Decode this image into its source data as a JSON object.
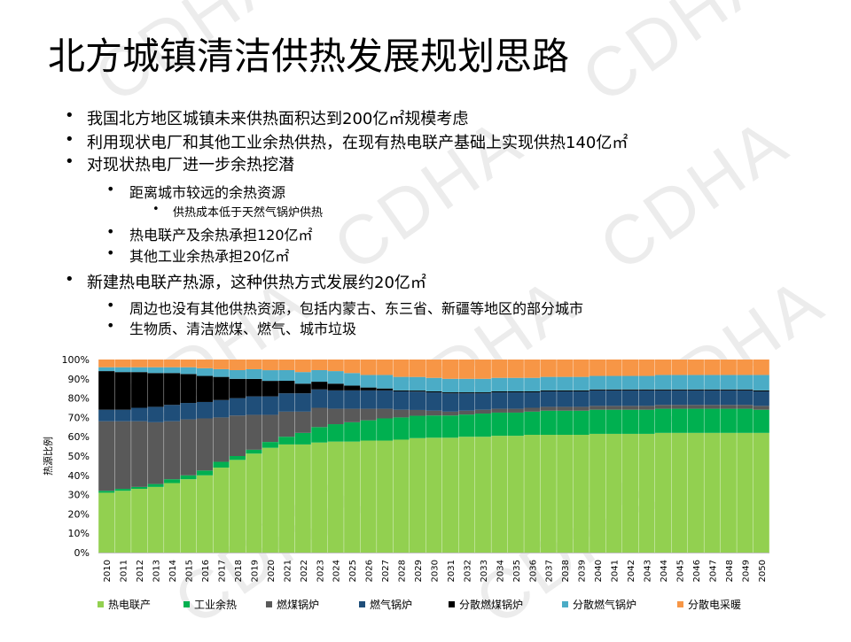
{
  "watermark": "CDHA",
  "title": "北方城镇清洁供热发展规划思路",
  "bullets": [
    {
      "level": 1,
      "text": "我国北方地区城镇未来供热面积达到200亿㎡规模考虑"
    },
    {
      "level": 1,
      "text": "利用现状电厂和其他工业余热供热，在现有热电联产基础上实现供热140亿㎡"
    },
    {
      "level": 1,
      "text": "对现状热电厂进一步余热挖潜"
    },
    {
      "level": 2,
      "text": "距离城市较远的余热资源"
    },
    {
      "level": 3,
      "text": "供热成本低于天然气锅炉供热"
    },
    {
      "level": 2,
      "text": "热电联产及余热承担120亿㎡"
    },
    {
      "level": 2,
      "text": "其他工业余热承担20亿㎡"
    },
    {
      "level": 1,
      "text": "新建热电联产热源，这种供热方式发展约20亿㎡"
    },
    {
      "level": 2,
      "text": "周边也没有其他供热资源，包括内蒙古、东三省、新疆等地区的部分城市"
    },
    {
      "level": 2,
      "text": "生物质、清洁燃煤、燃气、城市垃圾"
    }
  ],
  "chart_data": {
    "type": "stacked-bar-100",
    "title": "",
    "ylabel": "热源比例",
    "xlabel": "",
    "ylim": [
      0,
      100
    ],
    "yticks": [
      "0%",
      "10%",
      "20%",
      "30%",
      "40%",
      "50%",
      "60%",
      "70%",
      "80%",
      "90%",
      "100%"
    ],
    "categories": [
      "2010",
      "2011",
      "2012",
      "2013",
      "2014",
      "2015",
      "2016",
      "2017",
      "2018",
      "2019",
      "2020",
      "2021",
      "2022",
      "2023",
      "2024",
      "2025",
      "2026",
      "2027",
      "2028",
      "2029",
      "2030",
      "2031",
      "2032",
      "2033",
      "2034",
      "2035",
      "2036",
      "2037",
      "2038",
      "2039",
      "2040",
      "2041",
      "2042",
      "2043",
      "2044",
      "2045",
      "2046",
      "2047",
      "2048",
      "2049",
      "2050"
    ],
    "series": [
      {
        "name": "热电联产",
        "color": "#92d050",
        "values": [
          31,
          32,
          33,
          34,
          36,
          38,
          40,
          44,
          48,
          51,
          54,
          56,
          56,
          57,
          57.5,
          57.5,
          58,
          58,
          58.5,
          59,
          59.5,
          59.5,
          60,
          60,
          60.5,
          60.5,
          61,
          61,
          61,
          61,
          61.5,
          61.5,
          61.5,
          61.5,
          62,
          62,
          62,
          62,
          62,
          62,
          62
        ]
      },
      {
        "name": "工业余热",
        "color": "#00b050",
        "values": [
          1,
          1,
          1,
          1.5,
          2,
          2,
          2.5,
          3,
          2,
          2,
          3,
          4,
          6,
          8,
          9,
          10,
          10.5,
          11.5,
          11.5,
          11.5,
          11.5,
          11.5,
          11.5,
          12,
          12,
          12,
          12,
          12.5,
          12.5,
          12.5,
          12.5,
          12.5,
          12.5,
          12.5,
          12.5,
          12.5,
          12.5,
          12.5,
          12.5,
          12.5,
          12
        ]
      },
      {
        "name": "燃煤锅炉",
        "color": "#595959",
        "values": [
          36,
          35,
          34,
          32,
          30,
          29,
          27,
          23,
          21,
          18,
          14,
          13,
          11,
          10,
          8,
          7,
          6,
          5,
          4,
          3,
          2.5,
          2,
          2,
          2,
          2,
          2,
          2,
          2,
          2,
          2,
          2,
          2,
          2,
          2,
          2,
          2,
          2,
          2,
          2,
          2,
          2
        ]
      },
      {
        "name": "燃气锅炉",
        "color": "#1f4e79",
        "values": [
          6,
          6,
          7,
          8,
          8.5,
          8.5,
          8.5,
          9,
          9,
          9.5,
          9.5,
          9.5,
          9.5,
          9.5,
          9.5,
          9.5,
          9.5,
          9.5,
          9.5,
          9.5,
          9.5,
          9.5,
          9,
          8.5,
          8.5,
          8.5,
          8,
          8,
          8,
          8,
          8,
          8,
          8,
          8,
          7.5,
          7.5,
          7.5,
          7.5,
          7.5,
          7.5,
          7.5
        ]
      },
      {
        "name": "分散燃煤锅炉",
        "color": "#000000",
        "values": [
          20,
          19.5,
          18.5,
          17.5,
          16.5,
          15,
          13.5,
          12,
          10,
          9,
          8,
          6.5,
          5,
          4,
          3.5,
          2.5,
          1.5,
          1,
          0.5,
          0.5,
          0.5,
          0.5,
          0.5,
          0.5,
          0.5,
          0.5,
          0.5,
          0.5,
          0.5,
          0.5,
          0.5,
          0.5,
          0.5,
          0.5,
          0.5,
          0.5,
          0.5,
          0.5,
          0.5,
          0.5,
          0.5
        ]
      },
      {
        "name": "分散燃气锅炉",
        "color": "#4bacc6",
        "values": [
          2,
          2.5,
          2.5,
          3,
          3,
          3.5,
          4,
          4,
          4.5,
          5,
          5.5,
          5.5,
          6,
          6,
          6.5,
          6.5,
          6.5,
          7,
          7,
          7,
          7,
          7,
          7,
          7,
          7,
          7,
          7,
          7,
          7,
          7,
          7,
          7,
          7,
          7,
          7.5,
          7.5,
          7.5,
          7.5,
          7.5,
          7.5,
          8
        ]
      },
      {
        "name": "分散电采暖",
        "color": "#f79646",
        "values": [
          4,
          4,
          4,
          4,
          4,
          4,
          4.5,
          5,
          5.5,
          5,
          5.5,
          5.5,
          6.5,
          5.5,
          6,
          7,
          8,
          8,
          9,
          9,
          9.5,
          10,
          10,
          10,
          9.5,
          9.5,
          9.5,
          9,
          9,
          9,
          8.5,
          8.5,
          8.5,
          8.5,
          8,
          8,
          8,
          8,
          8,
          8,
          8
        ]
      }
    ],
    "legend_position": "bottom"
  }
}
